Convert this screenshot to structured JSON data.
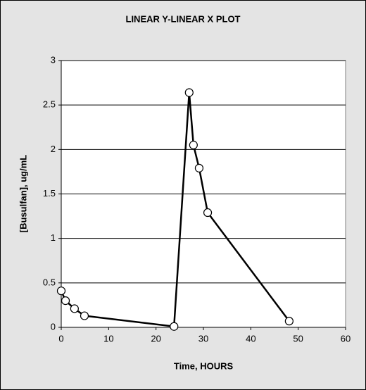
{
  "chart_data": {
    "type": "line",
    "title": "LINEAR Y-LINEAR X PLOT",
    "x_label": "Time, HOURS",
    "y_label": "[Busulfan], ug/mL",
    "x": [
      0,
      0.9,
      2.8,
      4.9,
      23.8,
      27,
      27.9,
      29.1,
      30.9,
      48.1
    ],
    "series": [
      {
        "name": "Busulfan",
        "color": "#000000",
        "values": [
          0.41,
          0.3,
          0.21,
          0.13,
          0.01,
          2.64,
          2.05,
          1.79,
          1.29,
          0.07
        ]
      }
    ],
    "xlim": [
      0,
      60
    ],
    "xticks": [
      0,
      10,
      20,
      30,
      40,
      50,
      60
    ],
    "ylim": [
      0,
      3
    ],
    "yticks": [
      0,
      0.5,
      1,
      1.5,
      2,
      2.5,
      3
    ],
    "grid": true
  }
}
